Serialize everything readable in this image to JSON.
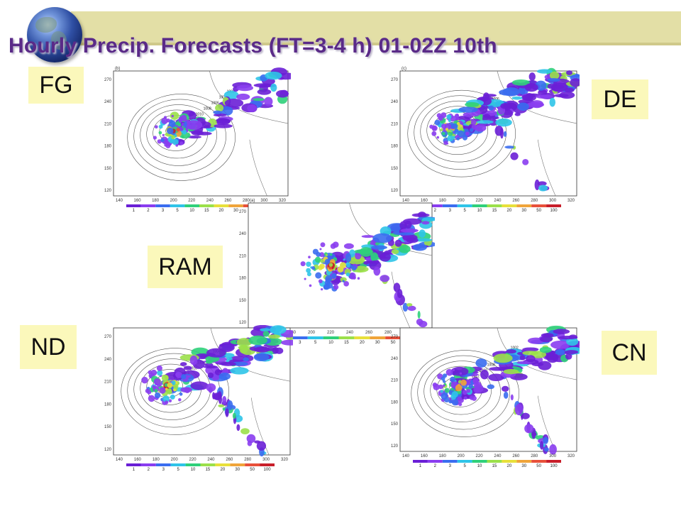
{
  "title": "Hourly Precip. Forecasts (FT=3-4 h) 01-02Z 10th",
  "labels": {
    "fg": "FG",
    "de": "DE",
    "ram": "RAM",
    "nd": "ND",
    "cn": "CN"
  },
  "panel_letters": {
    "fg": "(b)",
    "de": "(c)",
    "ram": "(a)"
  },
  "colorbar_ticks": [
    "1",
    "2",
    "3",
    "5",
    "10",
    "15",
    "20",
    "30",
    "50",
    "100"
  ],
  "y_ticks": [
    "270",
    "240",
    "210",
    "180",
    "150",
    "120"
  ],
  "x_ticks": [
    "140",
    "160",
    "180",
    "200",
    "220",
    "240",
    "260",
    "280",
    "300",
    "320"
  ],
  "isobars": [
    "1014",
    "1012",
    "1010",
    "1008",
    "1006",
    "1004",
    "1002"
  ],
  "colors": {
    "title": "#5a2a88",
    "band": "#e3dfa6",
    "label_bg": "#fbf8bb"
  }
}
